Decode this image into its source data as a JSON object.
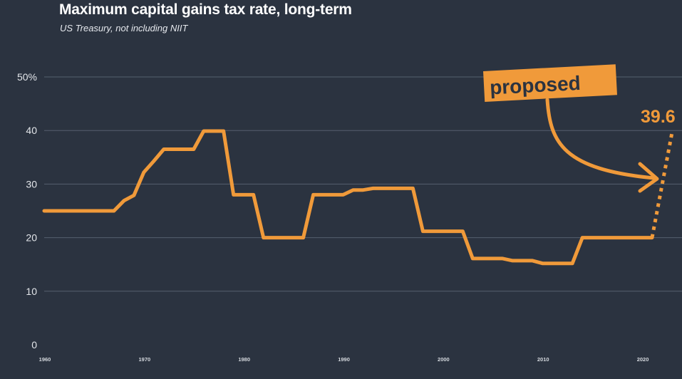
{
  "chart_data": {
    "type": "line",
    "title": "Maximum capital gains tax rate, long-term",
    "subtitle": "US Treasury, not including NIIT",
    "yticks": [
      "0",
      "10",
      "20",
      "30",
      "40",
      "50%"
    ],
    "ylim": [
      0,
      50
    ],
    "xticks": [
      "1960",
      "1970",
      "1980",
      "1990",
      "2000",
      "2010",
      "2020"
    ],
    "xlim": [
      1960,
      2024
    ],
    "grid": true,
    "colors": {
      "line": "#f09a3a",
      "background": "#2b3340",
      "grid": "#56606e"
    },
    "series": [
      {
        "values": [
          [
            1960,
            25
          ],
          [
            1961,
            25
          ],
          [
            1962,
            25
          ],
          [
            1963,
            25
          ],
          [
            1964,
            25
          ],
          [
            1965,
            25
          ],
          [
            1966,
            25
          ],
          [
            1967,
            25
          ],
          [
            1968,
            26.9
          ],
          [
            1969,
            27.9
          ],
          [
            1970,
            32.2
          ],
          [
            1971,
            34.3
          ],
          [
            1972,
            36.5
          ],
          [
            1973,
            36.5
          ],
          [
            1974,
            36.5
          ],
          [
            1975,
            36.5
          ],
          [
            1976,
            39.9
          ],
          [
            1977,
            39.9
          ],
          [
            1978,
            39.9
          ],
          [
            1979,
            28
          ],
          [
            1980,
            28
          ],
          [
            1981,
            28
          ],
          [
            1982,
            20
          ],
          [
            1983,
            20
          ],
          [
            1984,
            20
          ],
          [
            1985,
            20
          ],
          [
            1986,
            20
          ],
          [
            1987,
            28
          ],
          [
            1988,
            28
          ],
          [
            1989,
            28
          ],
          [
            1990,
            28
          ],
          [
            1991,
            28.9
          ],
          [
            1992,
            28.9
          ],
          [
            1993,
            29.2
          ],
          [
            1994,
            29.2
          ],
          [
            1995,
            29.2
          ],
          [
            1996,
            29.2
          ],
          [
            1997,
            29.2
          ],
          [
            1998,
            21.2
          ],
          [
            1999,
            21.2
          ],
          [
            2000,
            21.2
          ],
          [
            2001,
            21.2
          ],
          [
            2002,
            21.2
          ],
          [
            2003,
            16.1
          ],
          [
            2004,
            16.1
          ],
          [
            2005,
            16.1
          ],
          [
            2006,
            16.1
          ],
          [
            2007,
            15.7
          ],
          [
            2008,
            15.7
          ],
          [
            2009,
            15.7
          ],
          [
            2010,
            15.2
          ],
          [
            2011,
            15.2
          ],
          [
            2012,
            15.2
          ],
          [
            2013,
            15.2
          ],
          [
            2014,
            20
          ],
          [
            2015,
            20
          ],
          [
            2016,
            20
          ],
          [
            2017,
            20
          ],
          [
            2018,
            20
          ],
          [
            2019,
            20
          ],
          [
            2020,
            20
          ],
          [
            2021,
            20
          ]
        ]
      }
    ],
    "projection": {
      "from": [
        2021,
        20
      ],
      "to": [
        2023,
        39.6
      ]
    },
    "annotations": {
      "badge": "proposed",
      "value_label": "39.6"
    }
  }
}
